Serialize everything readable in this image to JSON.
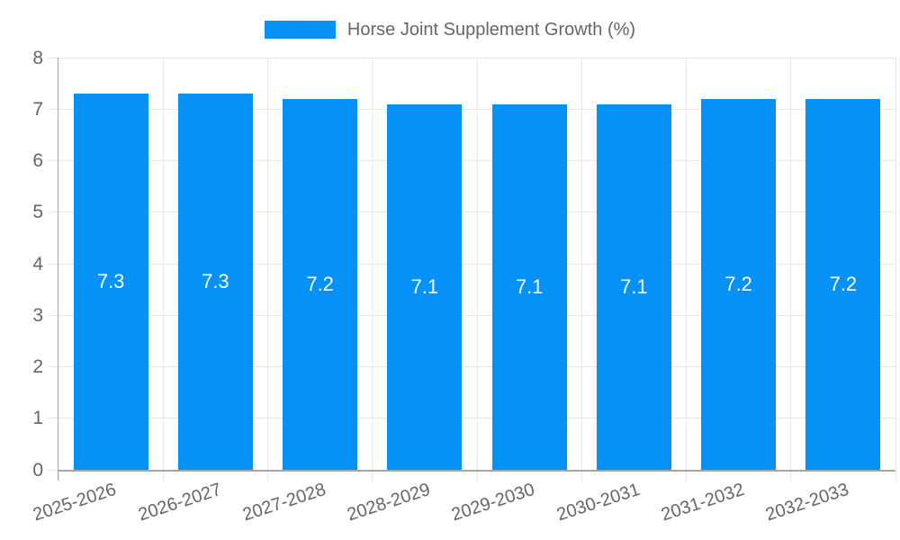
{
  "chart_data": {
    "type": "bar",
    "title": "Horse Joint Supplement Growth (%)",
    "categories": [
      "2025-2026",
      "2026-2027",
      "2027-2028",
      "2028-2029",
      "2029-2030",
      "2030-2031",
      "2031-2032",
      "2032-2033"
    ],
    "values": [
      7.3,
      7.3,
      7.2,
      7.1,
      7.1,
      7.1,
      7.2,
      7.2
    ],
    "bar_value_labels": [
      "7.3",
      "7.3",
      "7.2",
      "7.1",
      "7.1",
      "7.1",
      "7.2",
      "7.2"
    ],
    "ylim": [
      0,
      8
    ],
    "yticks": [
      0,
      1,
      2,
      3,
      4,
      5,
      6,
      7,
      8
    ],
    "xlabel": "",
    "ylabel": "",
    "grid": true,
    "legend_position": "top-center",
    "colors": {
      "bar": "#0591f5",
      "bar_label": "#ffffff",
      "tick_text": "#666666",
      "grid": "#e7e7e7",
      "axis": "#a6a6a6"
    }
  }
}
